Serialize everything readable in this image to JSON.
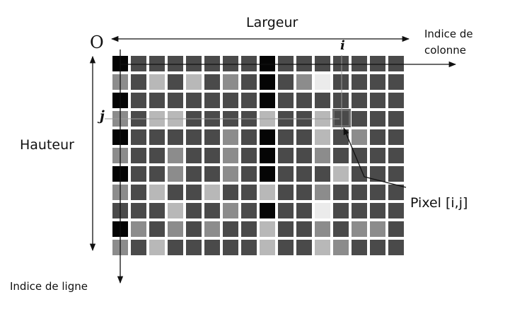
{
  "labels": {
    "width": "Largeur",
    "height": "Hauteur",
    "origin": "O",
    "col_index": [
      "Indice de",
      "colonne"
    ],
    "row_index": "Indice de ligne",
    "i": "i",
    "j": "j",
    "pixel": "Pixel [i,j]"
  },
  "grid": {
    "rows": 11,
    "cols": 16,
    "highlight": {
      "row": 3,
      "col": 12
    },
    "levels": [
      "0BBBBBBB0BBBBBBB",
      "HB2B2BHB0BH1BBBB",
      "0BBBBBBB0BBBBBBB",
      "HB22BBBB2BB2BBBB",
      "0BBBBBHB0BB2BHBB",
      "HBBHBBHB0BBHBBBB",
      "0BBHBBHB0BBB2BBB",
      "HB2BB2BB2BBHBBBB",
      "BBB2BBHB0BB1BBBB",
      "0HBHBHBB2BBHBHHB",
      "HB2BBBBB2BB2HBBB"
    ],
    "palette": {
      "0": "#050505",
      "B": "#4a4a4a",
      "H": "#8c8c8c",
      "2": "#b8b8b8",
      "1": "#ebebeb"
    }
  }
}
